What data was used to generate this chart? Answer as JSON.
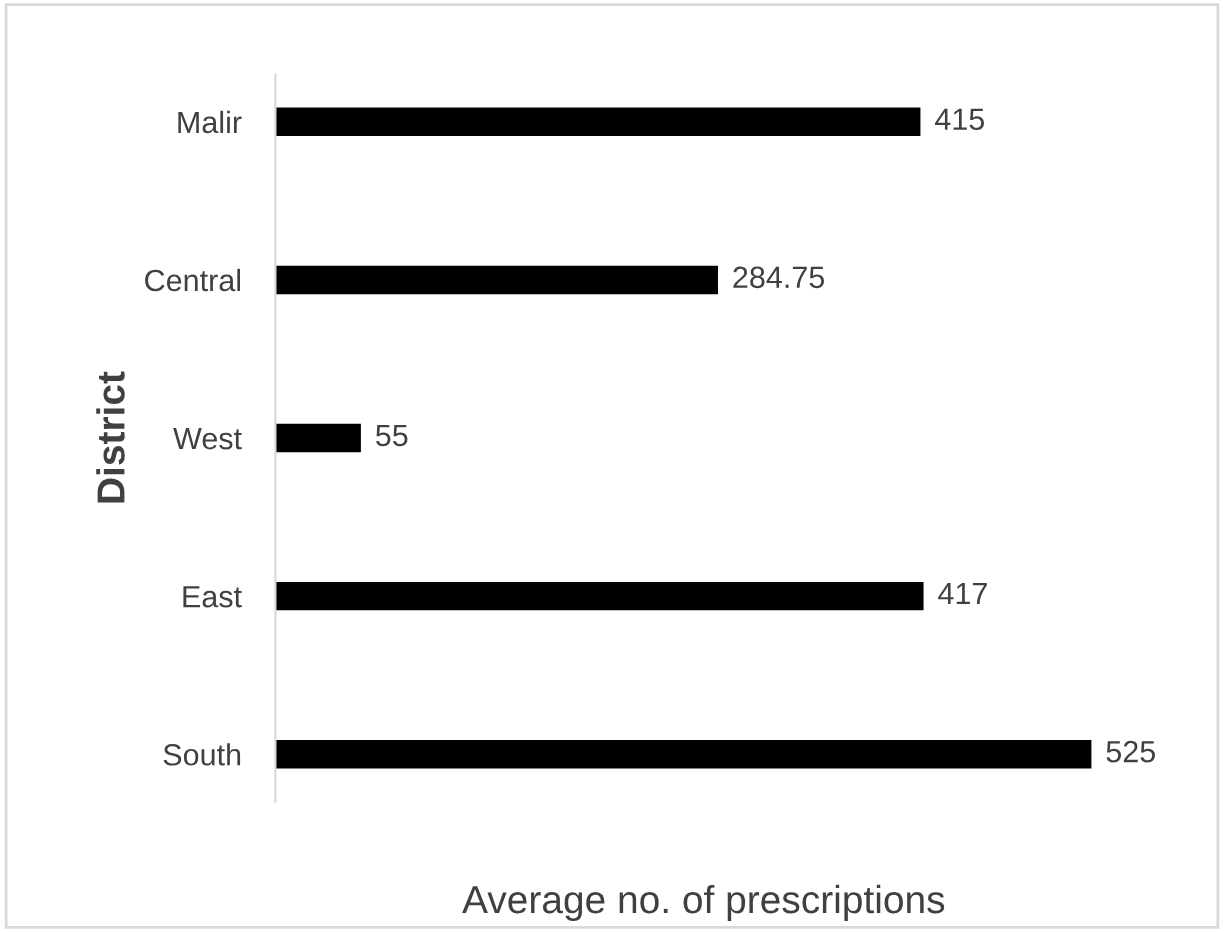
{
  "chart_data": {
    "type": "bar",
    "orientation": "horizontal",
    "xlabel": "Average no. of prescriptions",
    "ylabel": "District",
    "categories": [
      "Malir",
      "Central",
      "West",
      "East",
      "South"
    ],
    "values": [
      415,
      284.75,
      55,
      417,
      525
    ],
    "color": "#000000",
    "data_labels": true,
    "grid": false,
    "legend": false,
    "tick_labels": "y"
  }
}
